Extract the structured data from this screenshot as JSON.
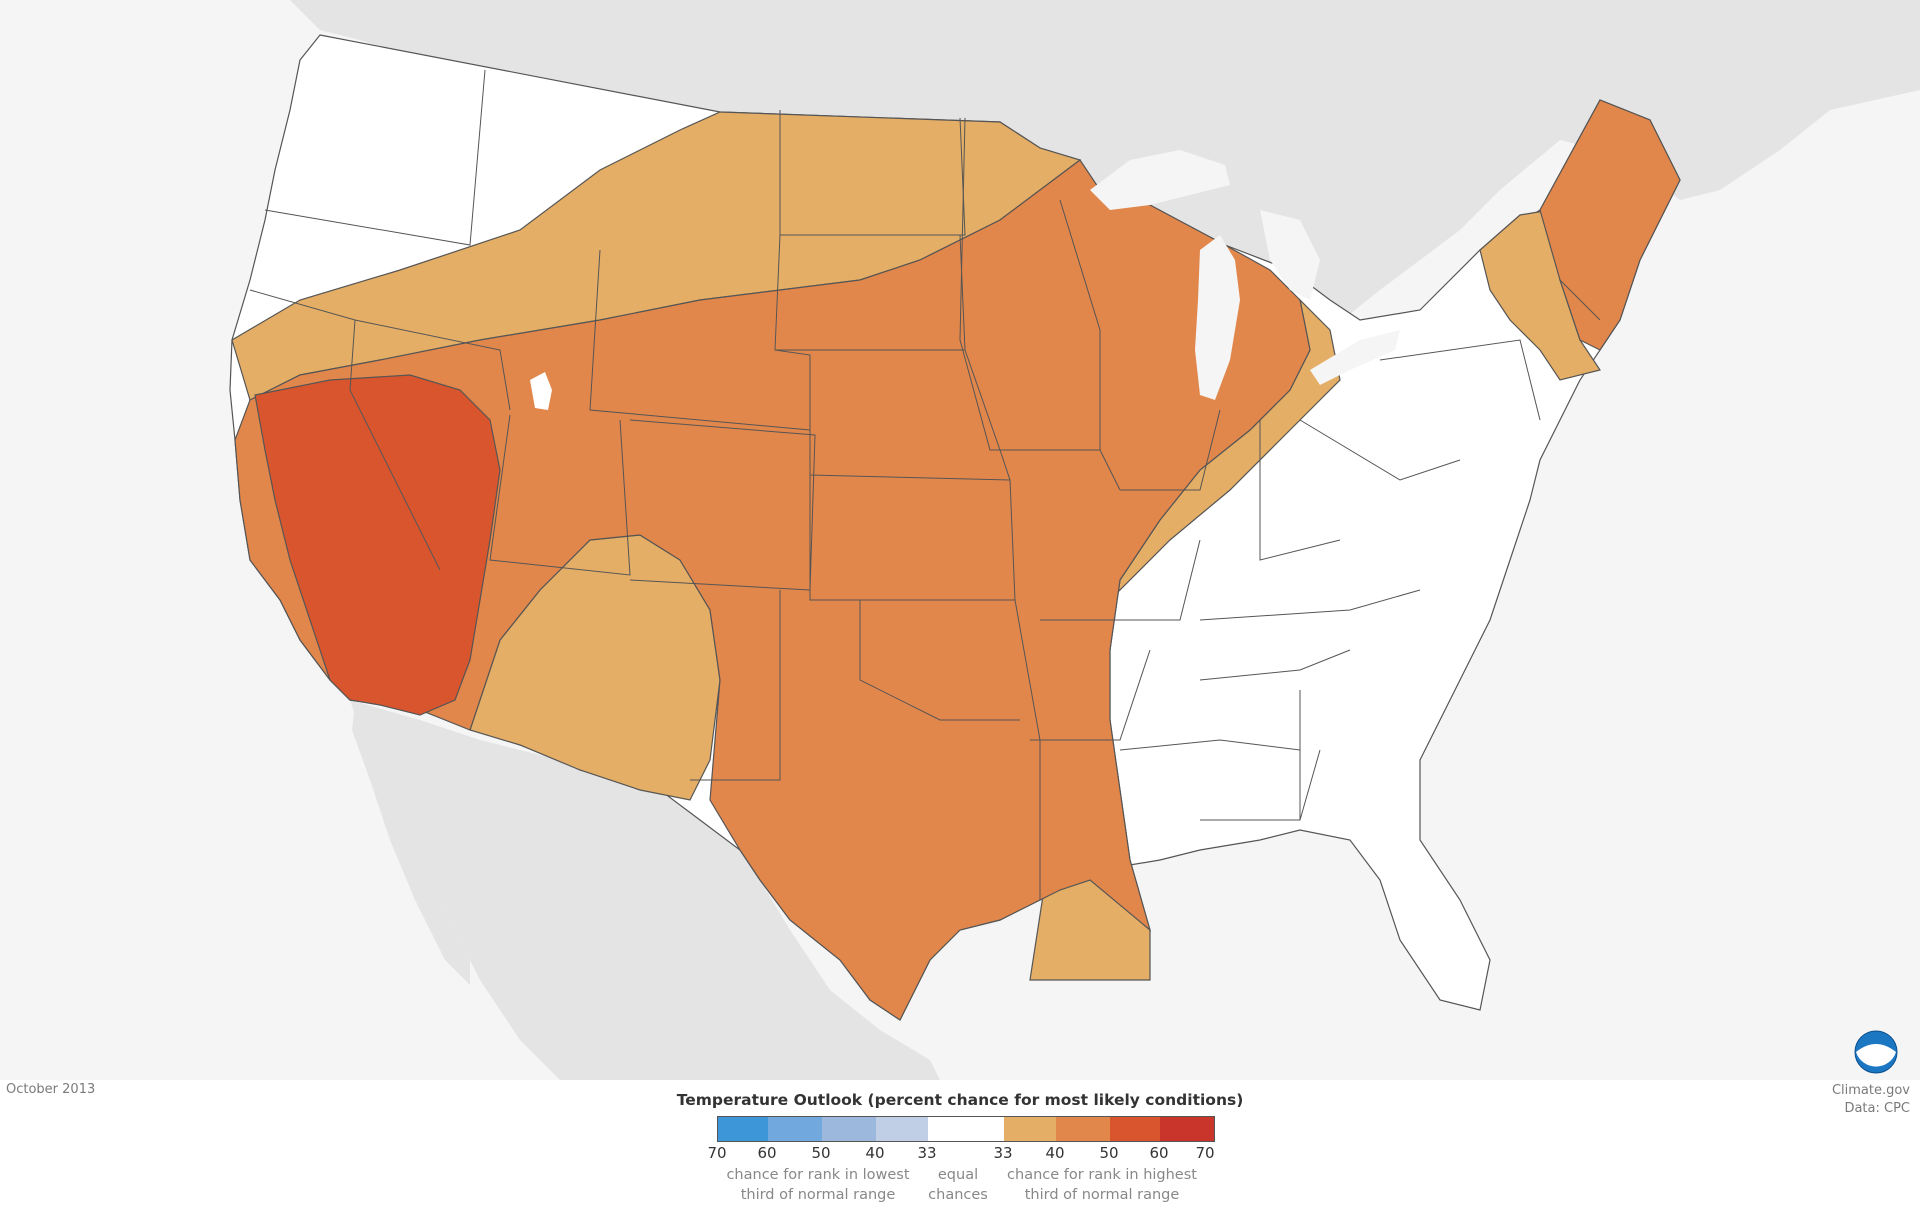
{
  "map": {
    "footer_date": "October 2013",
    "credit_line1": "Climate.gov",
    "credit_line2": "Data: CPC",
    "colors": {
      "background_land": "#e4e4e4",
      "background_sea": "#f5f5f5",
      "equal_chances": "#ffffff",
      "above_33": "#e4ae66",
      "above_40": "#e2874b",
      "above_50": "#d9552d",
      "outline": "#555555"
    },
    "legend": {
      "title": "Temperature Outlook (percent chance for most likely conditions)",
      "swatches": [
        {
          "label": "below-60-70",
          "color": "#3c96d8"
        },
        {
          "label": "below-50-60",
          "color": "#71a8dd"
        },
        {
          "label": "below-40-50",
          "color": "#9cb8dc"
        },
        {
          "label": "below-33-40",
          "color": "#c1cfe6"
        },
        {
          "label": "equal",
          "color": "#ffffff"
        },
        {
          "label": "above-33-40",
          "color": "#e4ae66"
        },
        {
          "label": "above-40-50",
          "color": "#e2874b"
        },
        {
          "label": "above-50-60",
          "color": "#d9552d"
        },
        {
          "label": "above-60-70",
          "color": "#c9342b"
        }
      ],
      "ticks": [
        "70",
        "60",
        "50",
        "40",
        "33",
        "33",
        "40",
        "50",
        "60",
        "70"
      ],
      "note_below_line1": "chance for rank in lowest",
      "note_below_line2": "third of normal range",
      "note_equal_line1": "equal",
      "note_equal_line2": "chances",
      "note_above_line1": "chance for rank in  highest",
      "note_above_line2": "third of normal range"
    }
  }
}
